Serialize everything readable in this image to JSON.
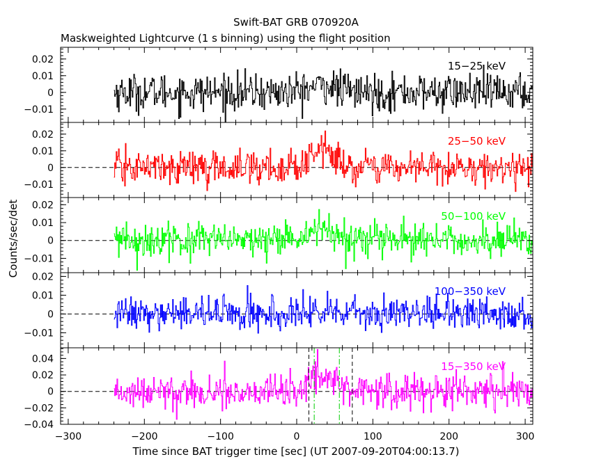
{
  "title": "Swift-BAT GRB 070920A",
  "subtitle": "Maskweighted Lightcurve (1 s binning) using the flight position",
  "xlabel": "Time since BAT trigger time [sec] (UT 2007-09-20T04:00:13.7)",
  "ylabel": "Counts/sec/det",
  "chart_data": [
    {
      "type": "line",
      "name": "15-25 keV",
      "label": "15−25 keV",
      "color": "#000000",
      "xlim": [
        -310,
        310
      ],
      "ylim": [
        -0.018,
        0.027
      ],
      "yticks": [
        -0.01,
        0,
        0.01,
        0.02
      ],
      "yticklabels": [
        "−0.01",
        "0",
        "0.01",
        "0.02"
      ],
      "data_range": [
        -240,
        310
      ],
      "noise_sigma": 0.0055,
      "pulse": {
        "t0": 35,
        "width": 25,
        "amp": 0.004
      },
      "show_zero_line": false
    },
    {
      "type": "line",
      "name": "25-50 keV",
      "label": "25−50 keV",
      "color": "#ff0000",
      "xlim": [
        -310,
        310
      ],
      "ylim": [
        -0.018,
        0.027
      ],
      "yticks": [
        -0.01,
        0,
        0.01,
        0.02
      ],
      "yticklabels": [
        "−0.01",
        "0",
        "0.01",
        "0.02"
      ],
      "data_range": [
        -240,
        310
      ],
      "noise_sigma": 0.005,
      "pulse": {
        "t0": 32,
        "width": 20,
        "amp": 0.011
      },
      "show_zero_line": true
    },
    {
      "type": "line",
      "name": "50-100 keV",
      "label": "50−100 keV",
      "color": "#00ff00",
      "xlim": [
        -310,
        310
      ],
      "ylim": [
        -0.018,
        0.024
      ],
      "yticks": [
        -0.01,
        0,
        0.01,
        0.02
      ],
      "yticklabels": [
        "−0.01",
        "0",
        "0.01",
        "0.02"
      ],
      "data_range": [
        -240,
        310
      ],
      "noise_sigma": 0.0047,
      "pulse": {
        "t0": 28,
        "width": 18,
        "amp": 0.008
      },
      "show_zero_line": true
    },
    {
      "type": "line",
      "name": "100-350 keV",
      "label": "100−350 keV",
      "color": "#0000ff",
      "xlim": [
        -310,
        310
      ],
      "ylim": [
        -0.018,
        0.022
      ],
      "yticks": [
        -0.01,
        0,
        0.01,
        0.02
      ],
      "yticklabels": [
        "−0.01",
        "0",
        "0.01",
        "0.02"
      ],
      "data_range": [
        -240,
        310
      ],
      "noise_sigma": 0.0043,
      "pulse": {
        "t0": 30,
        "width": 20,
        "amp": 0.001
      },
      "show_zero_line": true
    },
    {
      "type": "line",
      "name": "15-350 keV",
      "label": "15−350 keV",
      "color": "#ff00ff",
      "xlim": [
        -310,
        310
      ],
      "ylim": [
        -0.04,
        0.053
      ],
      "yticks": [
        -0.04,
        -0.02,
        0,
        0.02,
        0.04
      ],
      "yticklabels": [
        "−0.04",
        "−0.02",
        "0",
        "0.02",
        "0.04"
      ],
      "data_range": [
        -240,
        310
      ],
      "noise_sigma": 0.0105,
      "pulse": {
        "t0": 32,
        "width": 22,
        "amp": 0.02
      },
      "show_zero_line": true,
      "vlines": [
        {
          "x": 16,
          "style": "dashed",
          "color": "#000000"
        },
        {
          "x": 73,
          "style": "dashed",
          "color": "#000000"
        },
        {
          "x": 23,
          "style": "dashdot",
          "color": "#00cc00"
        },
        {
          "x": 56,
          "style": "dashdot",
          "color": "#00cc00"
        }
      ]
    }
  ],
  "xaxis": {
    "xlim": [
      -310,
      310
    ],
    "ticks": [
      -300,
      -200,
      -100,
      0,
      100,
      200,
      300
    ],
    "ticklabels": [
      "−300",
      "−200",
      "−100",
      "0",
      "100",
      "200",
      "300"
    ]
  }
}
